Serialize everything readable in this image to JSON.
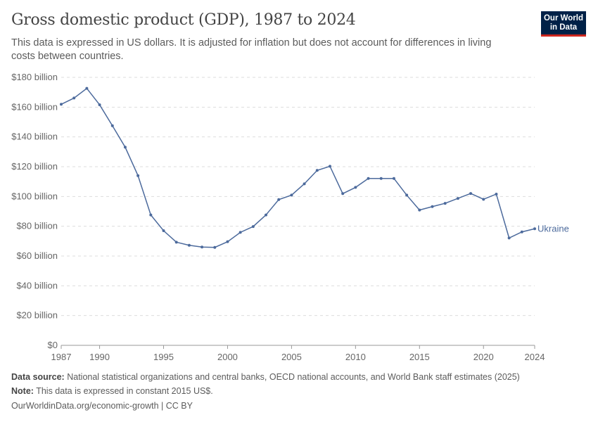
{
  "header": {
    "title": "Gross domestic product (GDP), 1987 to 2024",
    "subtitle": "This data is expressed in US dollars. It is adjusted for inflation but does not account for differences in living costs between countries.",
    "logo": "Our World in Data"
  },
  "chart_data": {
    "type": "line",
    "title": "Gross domestic product (GDP), 1987 to 2024",
    "ylim": [
      0,
      180
    ],
    "yticks": [
      0,
      20,
      40,
      60,
      80,
      100,
      120,
      140,
      160,
      180
    ],
    "ytick_labels": [
      "$0",
      "$20 billion",
      "$40 billion",
      "$60 billion",
      "$80 billion",
      "$100 billion",
      "$120 billion",
      "$140 billion",
      "$160 billion",
      "$180 billion"
    ],
    "xlim": [
      1987,
      2024
    ],
    "xticks": [
      1987,
      1990,
      1995,
      2000,
      2005,
      2010,
      2015,
      2020,
      2024
    ],
    "grid": "horizontal dashed",
    "series": [
      {
        "name": "Ukraine",
        "color": "#4c6a9c",
        "x": [
          1987,
          1988,
          1989,
          1990,
          1991,
          1992,
          1993,
          1994,
          1995,
          1996,
          1997,
          1998,
          1999,
          2000,
          2001,
          2002,
          2003,
          2004,
          2005,
          2006,
          2007,
          2008,
          2009,
          2010,
          2011,
          2012,
          2013,
          2014,
          2015,
          2016,
          2017,
          2018,
          2019,
          2020,
          2021,
          2022,
          2023,
          2024
        ],
        "values": [
          161.9,
          166.1,
          172.6,
          161.6,
          147.5,
          133.1,
          114.0,
          87.6,
          77.0,
          69.3,
          67.2,
          66.0,
          65.8,
          69.6,
          75.9,
          79.8,
          87.6,
          97.9,
          100.9,
          108.5,
          117.5,
          120.3,
          101.9,
          106.1,
          112.1,
          112.1,
          112.1,
          100.9,
          90.9,
          93.2,
          95.4,
          98.7,
          102.0,
          98.1,
          101.6,
          72.1,
          76.2,
          78.3
        ]
      }
    ]
  },
  "footer": {
    "source_label": "Data source:",
    "source": "National statistical organizations and central banks, OECD national accounts, and World Bank staff estimates (2025)",
    "note_label": "Note:",
    "note": "This data is expressed in constant 2015 US$.",
    "url": "OurWorldinData.org/economic-growth | CC BY"
  }
}
